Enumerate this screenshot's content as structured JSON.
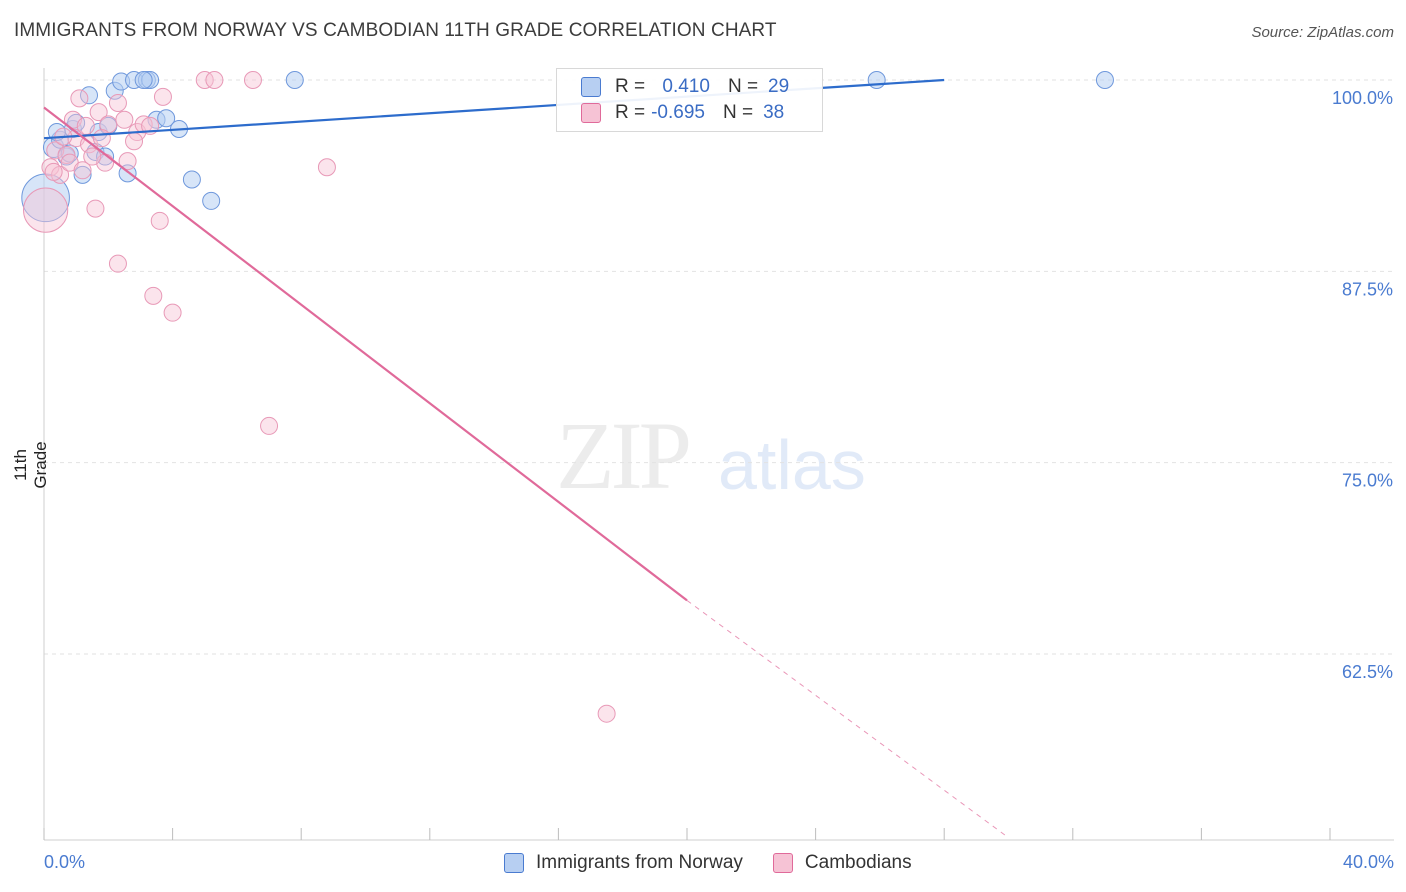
{
  "title": "IMMIGRANTS FROM NORWAY VS CAMBODIAN 11TH GRADE CORRELATION CHART",
  "source": "Source: ZipAtlas.com",
  "watermark": {
    "zip": "ZIP",
    "atlas": "atlas"
  },
  "colors": {
    "norway": "#4a7bd0",
    "norway_fill": "#b7cff2",
    "cambodian": "#e06a9a",
    "cambodian_fill": "#f6c3d5",
    "tick": "#4a7bd0"
  },
  "legend": {
    "rows": [
      {
        "r_label": "R =",
        "r_value": " 0.410",
        "n_label": "N =",
        "n_value": "29"
      },
      {
        "r_label": "R =",
        "r_value": "-0.695",
        "n_label": "N =",
        "n_value": "38"
      }
    ]
  },
  "bottom_legend": [
    "Immigrants from Norway",
    "Cambodians"
  ],
  "chart_data": {
    "type": "scatter",
    "ylabel": "11th Grade",
    "xlim": [
      0,
      40
    ],
    "ylim": [
      50.5,
      101
    ],
    "x_tick_labels": [
      "0.0%",
      "40.0%"
    ],
    "y_ticks": [
      100,
      87.5,
      75,
      62.5
    ],
    "y_tick_labels": [
      "100.0%",
      "87.5%",
      "75.0%",
      "62.5%"
    ],
    "grid": true,
    "series": [
      {
        "name": "Immigrants from Norway",
        "points": [
          [
            0.05,
            92.3,
            28
          ],
          [
            0.3,
            95.6,
            12
          ],
          [
            0.5,
            96.1,
            10
          ],
          [
            0.7,
            95.0,
            10
          ],
          [
            0.9,
            96.8,
            10
          ],
          [
            1.2,
            93.8,
            10
          ],
          [
            1.4,
            99.0,
            10
          ],
          [
            1.6,
            95.3,
            10
          ],
          [
            1.7,
            96.6,
            10
          ],
          [
            1.9,
            95.0,
            10
          ],
          [
            2.0,
            97.0,
            10
          ],
          [
            2.2,
            99.3,
            10
          ],
          [
            2.4,
            99.9,
            10
          ],
          [
            2.6,
            93.9,
            10
          ],
          [
            2.8,
            100,
            10
          ],
          [
            3.2,
            100,
            10
          ],
          [
            3.3,
            100,
            10
          ],
          [
            3.5,
            97.4,
            10
          ],
          [
            3.8,
            97.5,
            10
          ],
          [
            4.2,
            96.8,
            10
          ],
          [
            4.6,
            93.5,
            10
          ],
          [
            5.2,
            92.1,
            10
          ],
          [
            7.8,
            100,
            10
          ],
          [
            25.9,
            100,
            10
          ],
          [
            33.0,
            100,
            10
          ],
          [
            0.4,
            96.6,
            10
          ],
          [
            0.8,
            95.2,
            10
          ],
          [
            1.0,
            97.2,
            10
          ],
          [
            3.1,
            100,
            10
          ]
        ],
        "trend": {
          "x": [
            0.0,
            28.0
          ],
          "y": [
            96.2,
            100.0
          ]
        }
      },
      {
        "name": "Cambodians",
        "points": [
          [
            0.05,
            91.5,
            26
          ],
          [
            0.2,
            94.3,
            10
          ],
          [
            0.35,
            95.4,
            10
          ],
          [
            0.5,
            93.8,
            10
          ],
          [
            0.7,
            95.1,
            10
          ],
          [
            0.8,
            94.6,
            10
          ],
          [
            0.9,
            97.4,
            10
          ],
          [
            1.0,
            96.2,
            10
          ],
          [
            1.1,
            98.8,
            10
          ],
          [
            1.3,
            97.0,
            10
          ],
          [
            1.4,
            95.8,
            10
          ],
          [
            1.6,
            91.6,
            10
          ],
          [
            1.7,
            97.9,
            10
          ],
          [
            1.9,
            94.6,
            10
          ],
          [
            2.0,
            97.1,
            10
          ],
          [
            2.3,
            98.5,
            10
          ],
          [
            2.5,
            97.4,
            10
          ],
          [
            2.6,
            94.7,
            10
          ],
          [
            2.9,
            96.6,
            10
          ],
          [
            3.1,
            97.1,
            10
          ],
          [
            3.7,
            98.9,
            10
          ],
          [
            3.6,
            90.8,
            10
          ],
          [
            2.3,
            88.0,
            10
          ],
          [
            3.4,
            85.9,
            10
          ],
          [
            4.0,
            84.8,
            10
          ],
          [
            5.0,
            100,
            10
          ],
          [
            5.3,
            100,
            10
          ],
          [
            6.5,
            100,
            10
          ],
          [
            8.8,
            94.3,
            10
          ],
          [
            7.0,
            77.4,
            10
          ],
          [
            17.5,
            58.6,
            10
          ],
          [
            1.5,
            95.0,
            10
          ],
          [
            0.6,
            96.3,
            10
          ],
          [
            1.2,
            94.1,
            10
          ],
          [
            2.8,
            96.0,
            10
          ],
          [
            3.3,
            97.0,
            10
          ],
          [
            0.3,
            94.0,
            10
          ],
          [
            1.8,
            96.2,
            10
          ]
        ],
        "trend": {
          "x": [
            0.0,
            20.0
          ],
          "y": [
            98.2,
            66.0
          ]
        },
        "trend_dashed": {
          "x": [
            20.0,
            30.0
          ],
          "y": [
            66.0,
            50.5
          ]
        }
      }
    ]
  }
}
